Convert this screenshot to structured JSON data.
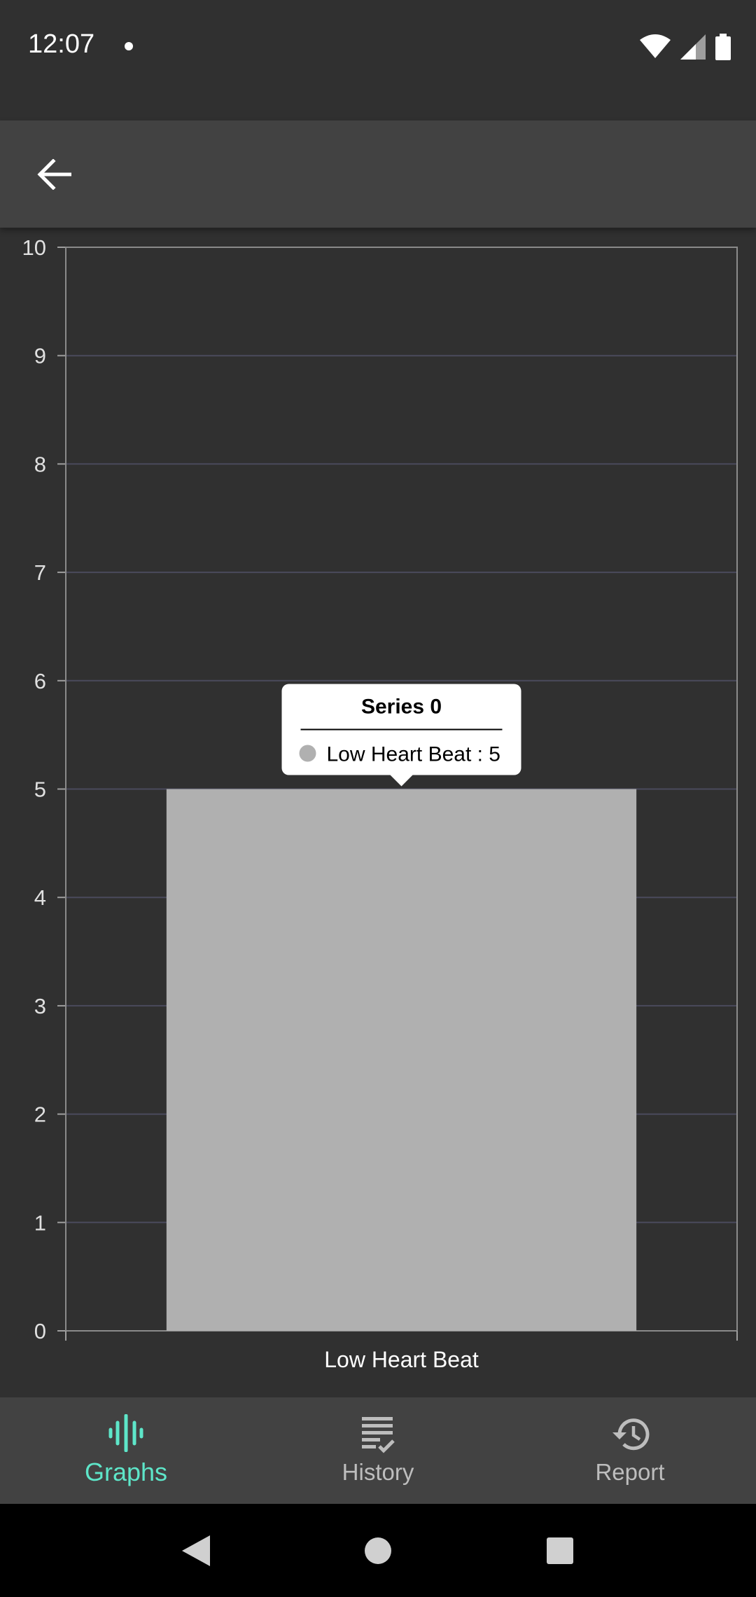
{
  "status_bar": {
    "time": "12:07"
  },
  "app_bar": {
    "back_icon": "arrow-left-icon"
  },
  "chart_data": {
    "type": "bar",
    "categories": [
      "Low Heart Beat"
    ],
    "series": [
      {
        "name": "Series 0",
        "values": [
          5
        ],
        "color": "#b0b0b0"
      }
    ],
    "title": "",
    "xlabel": "",
    "ylabel": "",
    "ylim": [
      0,
      10
    ],
    "yticks": [
      0,
      1,
      2,
      3,
      4,
      5,
      6,
      7,
      8,
      9,
      10
    ],
    "grid": true,
    "tooltip": {
      "title": "Series 0",
      "label": "Low Heart Beat : 5"
    }
  },
  "bottom_nav": {
    "items": [
      {
        "label": "Graphs",
        "icon": "waveform-icon",
        "active": true
      },
      {
        "label": "History",
        "icon": "list-check-icon",
        "active": false
      },
      {
        "label": "Report",
        "icon": "history-clock-icon",
        "active": false
      }
    ]
  },
  "colors": {
    "accent": "#5ee6c9",
    "background": "#303030",
    "bar": "#b0b0b0",
    "app_bar": "#424242"
  }
}
